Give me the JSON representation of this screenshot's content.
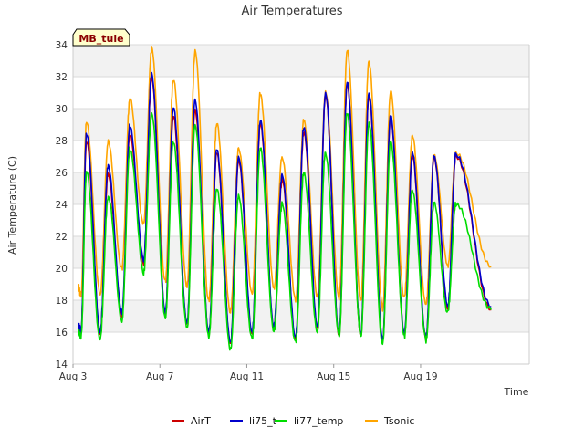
{
  "chart_data": {
    "type": "line",
    "title": "Air Temperatures",
    "xlabel": "Time",
    "ylabel": "Air Temperature (C)",
    "site_tag": "MB_tule",
    "xlim": [
      0,
      21
    ],
    "ylim": [
      14,
      34
    ],
    "y_ticks": [
      14,
      16,
      18,
      20,
      22,
      24,
      26,
      28,
      30,
      32,
      34
    ],
    "x_ticks": [
      {
        "label": "Aug 3",
        "day": 0
      },
      {
        "label": "Aug 7",
        "day": 4
      },
      {
        "label": "Aug 11",
        "day": 8
      },
      {
        "label": "Aug 15",
        "day": 12
      },
      {
        "label": "Aug 19",
        "day": 16
      }
    ],
    "grid": true,
    "legend_position": "bottom",
    "days": [
      "Aug 3",
      "Aug 4",
      "Aug 5",
      "Aug 6",
      "Aug 7",
      "Aug 8",
      "Aug 9",
      "Aug 10",
      "Aug 11",
      "Aug 12",
      "Aug 13",
      "Aug 14",
      "Aug 15",
      "Aug 16",
      "Aug 17",
      "Aug 18",
      "Aug 19",
      "Aug 20"
    ],
    "series": [
      {
        "name": "AirT",
        "color": "#cc0000",
        "start_value": 16.2,
        "end_value": 17.4,
        "daily_min": [
          16.0,
          15.9,
          17.0,
          20.3,
          17.1,
          16.5,
          15.8,
          15.2,
          15.9,
          16.3,
          15.6,
          16.3,
          15.8,
          15.8,
          15.4,
          15.8,
          15.6,
          17.4
        ],
        "daily_max": [
          28.0,
          26.0,
          28.5,
          32.0,
          29.5,
          30.0,
          27.3,
          26.7,
          29.0,
          25.5,
          28.5,
          30.8,
          31.5,
          30.8,
          29.5,
          27.0,
          27.0,
          27.0
        ]
      },
      {
        "name": "li75_t",
        "color": "#0000cc",
        "start_value": 16.4,
        "end_value": 17.6,
        "daily_min": [
          16.1,
          16.0,
          17.2,
          20.5,
          17.2,
          16.6,
          15.9,
          15.3,
          16.0,
          16.4,
          15.7,
          16.4,
          15.9,
          15.9,
          15.5,
          15.9,
          15.7,
          17.6
        ],
        "daily_max": [
          28.5,
          26.5,
          29.0,
          32.2,
          30.0,
          30.6,
          27.5,
          26.9,
          29.2,
          25.8,
          28.8,
          30.9,
          31.6,
          31.0,
          29.6,
          27.2,
          27.1,
          27.1
        ]
      },
      {
        "name": "li77_temp",
        "color": "#00dd00",
        "start_value": 16.0,
        "end_value": 17.4,
        "daily_min": [
          15.7,
          15.6,
          16.7,
          19.7,
          16.9,
          16.2,
          15.7,
          14.9,
          15.6,
          16.1,
          15.4,
          16.0,
          15.7,
          15.7,
          15.3,
          15.7,
          15.5,
          17.3
        ],
        "daily_max": [
          26.0,
          24.5,
          27.5,
          29.7,
          28.0,
          29.0,
          25.0,
          24.5,
          27.5,
          24.0,
          26.0,
          27.3,
          29.8,
          29.0,
          28.0,
          25.0,
          24.0,
          24.0
        ]
      },
      {
        "name": "Tsonic",
        "color": "#ffa500",
        "start_value": 18.8,
        "end_value": 20.1,
        "daily_min": [
          18.3,
          18.3,
          20.0,
          22.8,
          19.2,
          18.9,
          18.0,
          17.3,
          18.4,
          18.7,
          18.0,
          18.2,
          18.2,
          18.0,
          17.5,
          18.2,
          17.8,
          20.1
        ],
        "daily_max": [
          29.3,
          27.9,
          30.6,
          33.7,
          31.8,
          33.5,
          29.0,
          27.5,
          31.0,
          27.0,
          29.3,
          31.0,
          33.6,
          33.0,
          31.0,
          28.2,
          27.2,
          27.2
        ]
      }
    ]
  }
}
